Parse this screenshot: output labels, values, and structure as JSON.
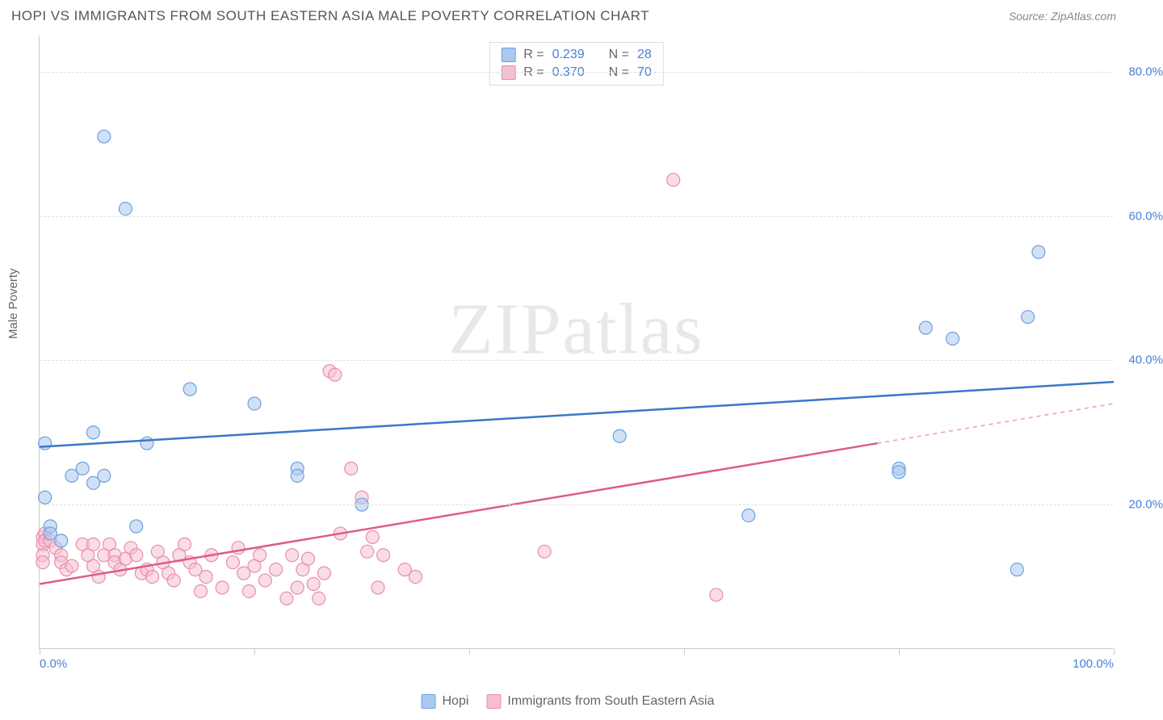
{
  "title": "HOPI VS IMMIGRANTS FROM SOUTH EASTERN ASIA MALE POVERTY CORRELATION CHART",
  "source_label": "Source: ZipAtlas.com",
  "y_axis_label": "Male Poverty",
  "watermark_zip": "ZIP",
  "watermark_atlas": "atlas",
  "chart": {
    "type": "scatter",
    "xlim": [
      0,
      100
    ],
    "ylim": [
      0,
      85
    ],
    "x_ticks": [
      0,
      20,
      40,
      60,
      80,
      100
    ],
    "x_tick_labels": [
      "0.0%",
      "",
      "",
      "",
      "",
      "100.0%"
    ],
    "y_grid": [
      20,
      40,
      60,
      80
    ],
    "y_tick_labels": [
      "20.0%",
      "40.0%",
      "60.0%",
      "80.0%"
    ],
    "background_color": "#ffffff",
    "grid_color": "#dddddd",
    "marker_radius": 8,
    "marker_alpha": 0.55,
    "series": [
      {
        "name": "Hopi",
        "color_fill": "#a9c9ee",
        "color_stroke": "#6ea0de",
        "R": "0.239",
        "N": "28",
        "trend": {
          "x1": 0,
          "y1": 28,
          "x2": 100,
          "y2": 37,
          "color": "#3a77c9",
          "width": 2.5,
          "solid_until": 100
        },
        "points": [
          [
            0.5,
            21
          ],
          [
            0.5,
            28.5
          ],
          [
            1,
            17
          ],
          [
            1,
            16
          ],
          [
            2,
            15
          ],
          [
            3,
            24
          ],
          [
            4,
            25
          ],
          [
            5,
            30
          ],
          [
            5,
            23
          ],
          [
            6,
            24
          ],
          [
            6,
            71
          ],
          [
            8,
            61
          ],
          [
            9,
            17
          ],
          [
            10,
            28.5
          ],
          [
            14,
            36
          ],
          [
            20,
            34
          ],
          [
            24,
            25
          ],
          [
            24,
            24
          ],
          [
            30,
            20
          ],
          [
            54,
            29.5
          ],
          [
            66,
            18.5
          ],
          [
            80,
            25
          ],
          [
            80,
            24.5
          ],
          [
            82.5,
            44.5
          ],
          [
            85,
            43
          ],
          [
            91,
            11
          ],
          [
            92,
            46
          ],
          [
            93,
            55
          ]
        ]
      },
      {
        "name": "Immigrants from South Eastern Asia",
        "color_fill": "#f6bfcf",
        "color_stroke": "#e78fab",
        "R": "0.370",
        "N": "70",
        "trend": {
          "x1": 0,
          "y1": 9,
          "x2": 100,
          "y2": 34,
          "color": "#de5d85",
          "width": 2.5,
          "solid_until": 78
        },
        "points": [
          [
            0.3,
            15.5
          ],
          [
            0.3,
            14.5
          ],
          [
            0.3,
            13
          ],
          [
            0.3,
            12
          ],
          [
            0.5,
            16
          ],
          [
            0.5,
            15
          ],
          [
            1,
            15
          ],
          [
            1.5,
            14
          ],
          [
            2,
            13
          ],
          [
            2,
            12
          ],
          [
            2.5,
            11
          ],
          [
            3,
            11.5
          ],
          [
            4,
            14.5
          ],
          [
            4.5,
            13
          ],
          [
            5,
            14.5
          ],
          [
            5,
            11.5
          ],
          [
            5.5,
            10
          ],
          [
            6,
            13
          ],
          [
            6.5,
            14.5
          ],
          [
            7,
            13
          ],
          [
            7,
            12
          ],
          [
            7.5,
            11
          ],
          [
            8,
            12.5
          ],
          [
            8.5,
            14
          ],
          [
            9,
            13
          ],
          [
            9.5,
            10.5
          ],
          [
            10,
            11
          ],
          [
            10.5,
            10
          ],
          [
            11,
            13.5
          ],
          [
            11.5,
            12
          ],
          [
            12,
            10.5
          ],
          [
            12.5,
            9.5
          ],
          [
            13,
            13
          ],
          [
            13.5,
            14.5
          ],
          [
            14,
            12
          ],
          [
            14.5,
            11
          ],
          [
            15,
            8
          ],
          [
            15.5,
            10
          ],
          [
            16,
            13
          ],
          [
            17,
            8.5
          ],
          [
            18,
            12
          ],
          [
            18.5,
            14
          ],
          [
            19,
            10.5
          ],
          [
            19.5,
            8
          ],
          [
            20,
            11.5
          ],
          [
            20.5,
            13
          ],
          [
            21,
            9.5
          ],
          [
            22,
            11
          ],
          [
            23,
            7
          ],
          [
            23.5,
            13
          ],
          [
            24,
            8.5
          ],
          [
            24.5,
            11
          ],
          [
            25,
            12.5
          ],
          [
            25.5,
            9
          ],
          [
            26,
            7
          ],
          [
            26.5,
            10.5
          ],
          [
            27,
            38.5
          ],
          [
            27.5,
            38
          ],
          [
            28,
            16
          ],
          [
            29,
            25
          ],
          [
            30,
            21
          ],
          [
            30.5,
            13.5
          ],
          [
            31,
            15.5
          ],
          [
            31.5,
            8.5
          ],
          [
            32,
            13
          ],
          [
            34,
            11
          ],
          [
            35,
            10
          ],
          [
            47,
            13.5
          ],
          [
            59,
            65
          ],
          [
            63,
            7.5
          ]
        ]
      }
    ]
  },
  "bottom_legend": [
    {
      "label": "Hopi",
      "fill": "#a9c9ee",
      "stroke": "#6ea0de"
    },
    {
      "label": "Immigrants from South Eastern Asia",
      "fill": "#f6bfcf",
      "stroke": "#e78fab"
    }
  ]
}
